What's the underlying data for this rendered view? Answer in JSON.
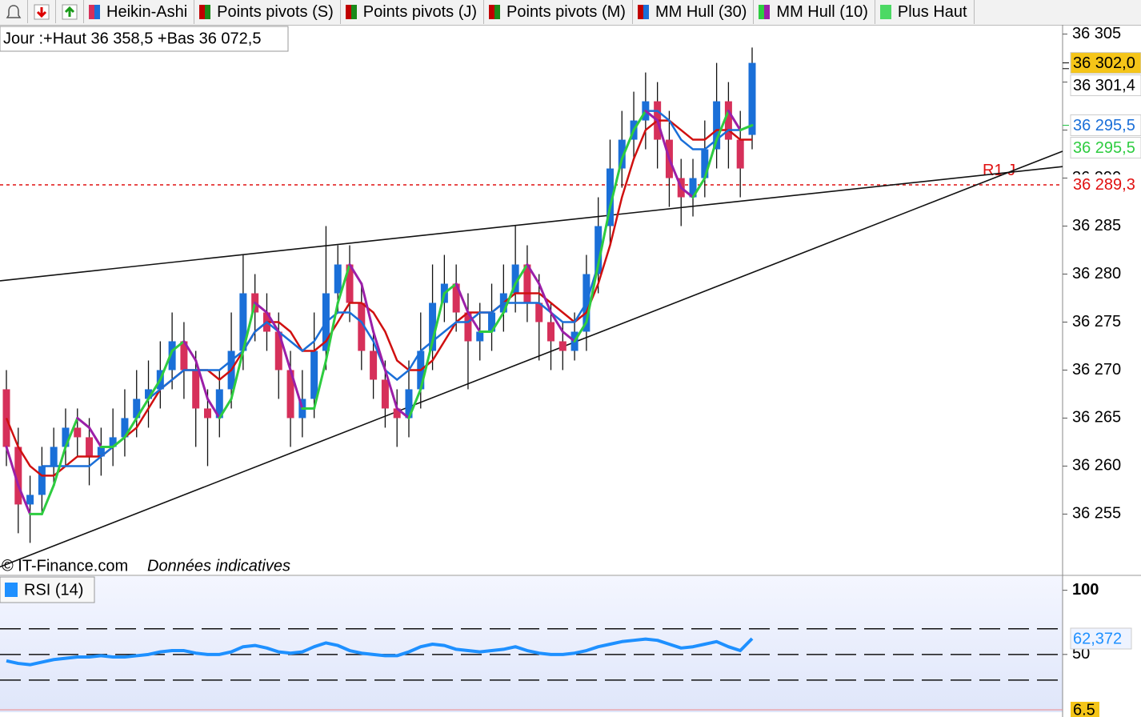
{
  "toolbar": {
    "items": [
      {
        "label": "Heikin-Ashi",
        "color": "#1a6fd8",
        "color2": "#d6305a"
      },
      {
        "label": "Points pivots (S)",
        "color": "#1a8a1a",
        "color2": "#c00000"
      },
      {
        "label": "Points pivots (J)",
        "color": "#1a8a1a",
        "color2": "#c00000"
      },
      {
        "label": "Points pivots (M)",
        "color": "#1a8a1a",
        "color2": "#c00000"
      },
      {
        "label": "MM Hull (30)",
        "color": "#1a6fd8",
        "color2": "#c00000"
      },
      {
        "label": "MM Hull (10)",
        "color": "#9b1fa8",
        "color2": "#2ecc40"
      },
      {
        "label": "Plus Haut",
        "color": "#4cd964",
        "color2": "#4cd964"
      }
    ]
  },
  "chart_data": [
    {
      "type": "candlestick",
      "header": "Jour :+Haut 36 358,5 +Bas 36 072,5",
      "credit": "© IT-Finance.com",
      "note": "Données indicatives",
      "ylim": [
        36248.7,
        36305.8
      ],
      "yticks": [
        {
          "value": 36255,
          "label": "36 255"
        },
        {
          "value": 36260,
          "label": "36 260"
        },
        {
          "value": 36265,
          "label": "36 265"
        },
        {
          "value": 36270,
          "label": "36 270"
        },
        {
          "value": 36275,
          "label": "36 275"
        },
        {
          "value": 36280,
          "label": "36 280"
        },
        {
          "value": 36285,
          "label": "36 285"
        },
        {
          "value": 36290,
          "label": "36 290"
        },
        {
          "value": 36295,
          "label": "36 295"
        },
        {
          "value": 36300,
          "label": "36 300"
        },
        {
          "value": 36305,
          "label": "36 305"
        }
      ],
      "up_color": "#1a6fd8",
      "down_color": "#d6305a",
      "open": [
        36268,
        36262,
        36256,
        36257,
        36260,
        36262,
        36264,
        36263,
        36261,
        36262,
        36263,
        36265,
        36267,
        36268,
        36270,
        36273,
        36270,
        36266,
        36265,
        36268,
        36272,
        36278,
        36276,
        36274,
        36270,
        36265,
        36267,
        36272,
        36278,
        36281,
        36277,
        36272,
        36269,
        36266,
        36265,
        36268,
        36272,
        36277,
        36279,
        36276,
        36273,
        36274,
        36276,
        36278,
        36281,
        36277,
        36275,
        36273,
        36272,
        36274,
        36280,
        36285,
        36291,
        36294,
        36296,
        36298,
        36294,
        36290,
        36288,
        36290,
        36293,
        36298,
        36294,
        36294.5
      ],
      "high": [
        36270,
        36264,
        36259,
        36262,
        36264,
        36266,
        36266,
        36265,
        36264,
        36266,
        36268,
        36270,
        36271,
        36273,
        36276,
        36275,
        36272,
        36268,
        36270,
        36276,
        36282,
        36280,
        36278,
        36276,
        36272,
        36270,
        36276,
        36285,
        36283,
        36283,
        36279,
        36274,
        36271,
        36268,
        36271,
        36276,
        36281,
        36282,
        36281,
        36278,
        36277,
        36279,
        36281,
        36285,
        36283,
        36280,
        36277,
        36275,
        36276,
        36282,
        36288,
        36294,
        36297,
        36299,
        36301,
        36300,
        36297,
        36292,
        36292,
        36296,
        36302,
        36300,
        36297,
        36303.6
      ],
      "low": [
        36260,
        36253,
        36252,
        36255,
        36258,
        36260,
        36261,
        36258,
        36259,
        36260,
        36261,
        36263,
        36264,
        36266,
        36268,
        36267,
        36262,
        36260,
        36263,
        36266,
        36270,
        36273,
        36272,
        36267,
        36262,
        36263,
        36265,
        36270,
        36276,
        36275,
        36270,
        36267,
        36264,
        36262,
        36263,
        36266,
        36270,
        36275,
        36274,
        36268,
        36271,
        36272,
        36274,
        36276,
        36275,
        36271,
        36270,
        36270,
        36271,
        36272,
        36278,
        36283,
        36289,
        36292,
        36293,
        36291,
        36287,
        36285,
        36286,
        36288,
        36291,
        36291,
        36288,
        36293
      ],
      "close": [
        36262,
        36256,
        36257,
        36260,
        36262,
        36264,
        36263,
        36261,
        36262,
        36263,
        36265,
        36267,
        36268,
        36270,
        36273,
        36270,
        36266,
        36265,
        36268,
        36272,
        36278,
        36276,
        36274,
        36270,
        36265,
        36267,
        36272,
        36278,
        36281,
        36277,
        36272,
        36269,
        36266,
        36265,
        36268,
        36272,
        36277,
        36279,
        36276,
        36273,
        36274,
        36276,
        36278,
        36281,
        36277,
        36275,
        36273,
        36272,
        36274,
        36280,
        36285,
        36291,
        36294,
        36296,
        36298,
        36294,
        36290,
        36288,
        36290,
        36293,
        36298,
        36294,
        36291,
        36302.0
      ],
      "series": [
        {
          "color": "#d01010",
          "values": [
            36265,
            36262,
            36260,
            36259,
            36259,
            36260,
            36261,
            36261,
            36261,
            36262,
            36263,
            36264,
            36266,
            36268,
            36269,
            36270,
            36270,
            36270,
            36269,
            36270,
            36272,
            36274,
            36275,
            36275,
            36274,
            36272,
            36272,
            36273,
            36275,
            36277,
            36277,
            36276,
            36274,
            36271,
            36270,
            36270,
            36271,
            36273,
            36275,
            36276,
            36276,
            36276,
            36277,
            36278,
            36278,
            36278,
            36277,
            36276,
            36275,
            36276,
            36279,
            36283,
            36288,
            36292,
            36295,
            36296,
            36296,
            36295,
            36294,
            36294,
            36295,
            36295,
            36294,
            36294
          ]
        },
        {
          "name": "MM Hull (30)",
          "color": "#1a6fd8",
          "values": [
            null,
            null,
            null,
            36260,
            36260,
            36260,
            36260,
            36260,
            36261,
            36262,
            36263,
            36265,
            36267,
            36268,
            36269,
            36270,
            36270,
            36270,
            36270,
            36271,
            36272,
            36274,
            36275,
            36274,
            36273,
            36272,
            36273,
            36275,
            36276,
            36276,
            36275,
            36273,
            36270,
            36269,
            36270,
            36272,
            36273,
            36274,
            36275,
            36275,
            36276,
            36276,
            36277,
            36277,
            36277,
            36277,
            36276,
            36275,
            36275,
            36277,
            36281,
            36287,
            36292,
            36295,
            36297,
            36297,
            36296,
            36294,
            36293,
            36293,
            36294,
            36295,
            36295,
            36295.5
          ]
        },
        {
          "name": "MM Hull (10)",
          "color": "#9b1fa8",
          "up_color": "#2ecc40",
          "values": [
            36262,
            36258,
            36255,
            36255,
            36258,
            36262,
            36265,
            36264,
            36262,
            36262,
            36263,
            36265,
            36267,
            36269,
            36272,
            36273,
            36271,
            36267,
            36265,
            36267,
            36272,
            36277,
            36276,
            36274,
            36270,
            36266,
            36266,
            36271,
            36277,
            36281,
            36279,
            36274,
            36270,
            36266,
            36265,
            36268,
            36273,
            36278,
            36279,
            36276,
            36274,
            36274,
            36276,
            36279,
            36281,
            36279,
            36276,
            36274,
            36273,
            36275,
            36281,
            36287,
            36292,
            36295,
            36297,
            36296,
            36292,
            36289,
            36288,
            36290,
            36294,
            36297,
            36295,
            36295.5
          ]
        }
      ],
      "trendlines": [
        {
          "values": [
            36279.3,
            36291.2
          ]
        },
        {
          "values": [
            36249.5,
            36292.8
          ]
        }
      ],
      "pivot": {
        "label": "R1 J",
        "value": 36289.3,
        "value_label": "36 289,3",
        "color": "#e01010"
      },
      "markers": [
        {
          "value": 36302.0,
          "label": "36 302,0",
          "bg": "#f5c518",
          "fg": "#000"
        },
        {
          "value": 36301.4,
          "label": "36 301,4",
          "bg": "#ffffff",
          "fg": "#000"
        },
        {
          "value": 36295.5,
          "label": "36 295,5",
          "bg": "#ffffff",
          "fg": "#1a6fd8"
        },
        {
          "value": 36295.5,
          "label": "36 295,5",
          "bg": "#ffffff",
          "fg": "#2ecc40"
        }
      ]
    },
    {
      "type": "line",
      "title": "RSI (14)",
      "color": "#1e90ff",
      "ylim": [
        5,
        111
      ],
      "yticks": [
        50,
        100
      ],
      "levels": [
        30,
        50,
        70
      ],
      "bottom_label": "6.5",
      "values": [
        45,
        43,
        42,
        44,
        46,
        47,
        48,
        48,
        49,
        48,
        48,
        49,
        50,
        52,
        53,
        53,
        51,
        50,
        50,
        52,
        56,
        57,
        55,
        52,
        51,
        52,
        56,
        59,
        57,
        53,
        51,
        50,
        49,
        49,
        52,
        56,
        58,
        57,
        54,
        53,
        52,
        53,
        54,
        56,
        53,
        51,
        50,
        50,
        51,
        53,
        56,
        58,
        60,
        61,
        62,
        61,
        58,
        55,
        56,
        58,
        60,
        56,
        53,
        62.372
      ],
      "last_label": "62,372"
    }
  ]
}
